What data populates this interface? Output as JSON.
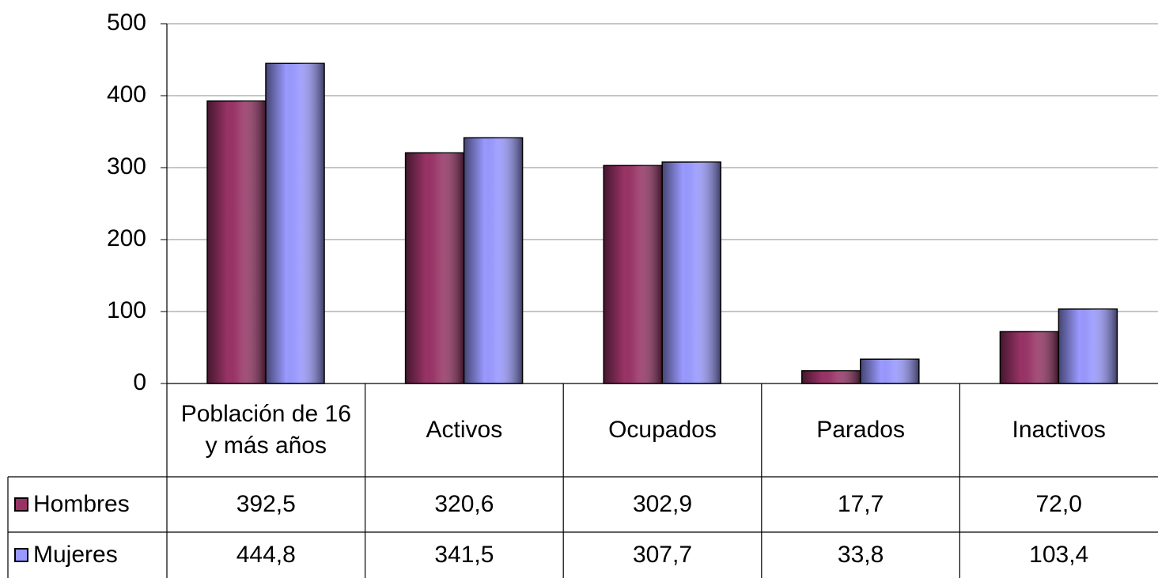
{
  "chart_data": {
    "type": "bar",
    "categories": [
      "Población de 16 y más años",
      "Activos",
      "Ocupados",
      "Parados",
      "Inactivos"
    ],
    "series": [
      {
        "name": "Hombres",
        "color": "#993366",
        "values": [
          392.5,
          320.6,
          302.9,
          17.7,
          72.0
        ],
        "value_labels": [
          "392,5",
          "320,6",
          "302,9",
          "17,7",
          "72,0"
        ]
      },
      {
        "name": "Mujeres",
        "color": "#9999ff",
        "values": [
          444.8,
          341.5,
          307.7,
          33.8,
          103.4
        ],
        "value_labels": [
          "444,8",
          "341,5",
          "307,7",
          "33,8",
          "103,4"
        ]
      }
    ],
    "ylim": [
      0,
      500
    ],
    "yticks": [
      0,
      100,
      200,
      300,
      400,
      500
    ],
    "grid": true
  }
}
